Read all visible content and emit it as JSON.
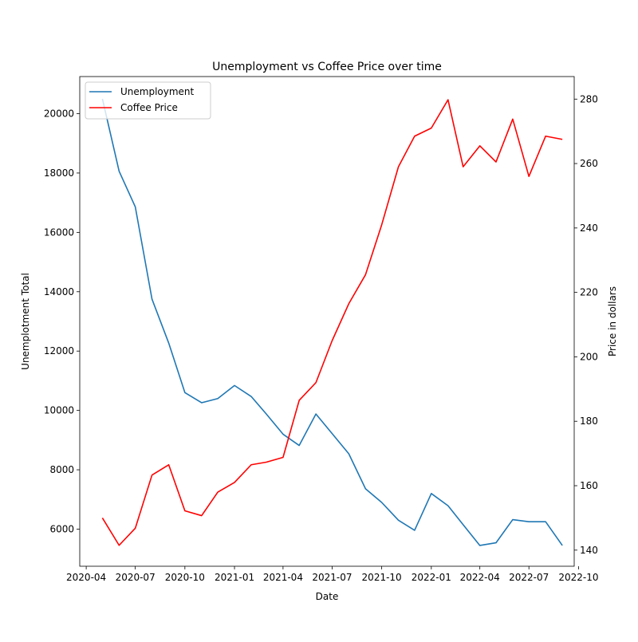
{
  "chart_data": {
    "type": "line",
    "title": "Unemployment vs Coffee Price over time",
    "xlabel": "Date",
    "ylabel_left": "Unemplotment Total",
    "ylabel_right": "Price in dollars",
    "x": [
      "2020-05-01",
      "2020-06-01",
      "2020-07-01",
      "2020-08-01",
      "2020-09-01",
      "2020-10-01",
      "2020-11-01",
      "2020-12-01",
      "2021-01-01",
      "2021-02-01",
      "2021-03-01",
      "2021-04-01",
      "2021-05-01",
      "2021-06-01",
      "2021-07-01",
      "2021-08-01",
      "2021-09-01",
      "2021-10-01",
      "2021-11-01",
      "2021-12-01",
      "2022-01-01",
      "2022-02-01",
      "2022-03-01",
      "2022-04-01",
      "2022-05-01",
      "2022-06-01",
      "2022-07-01",
      "2022-08-01",
      "2022-09-01"
    ],
    "xlim": [
      "2020-03-20",
      "2022-09-23"
    ],
    "x_ticks": [
      "2020-04-01",
      "2020-07-01",
      "2020-10-01",
      "2021-01-01",
      "2021-04-01",
      "2021-07-01",
      "2021-10-01",
      "2022-01-01",
      "2022-04-01",
      "2022-07-01",
      "2022-10-01"
    ],
    "x_tick_labels": [
      "2020-04",
      "2020-07",
      "2020-10",
      "2021-01",
      "2021-04",
      "2021-07",
      "2021-10",
      "2022-01",
      "2022-04",
      "2022-07",
      "2022-10"
    ],
    "ylim_left": [
      4750,
      21250
    ],
    "y_ticks_left": [
      6000,
      8000,
      10000,
      12000,
      14000,
      16000,
      18000,
      20000
    ],
    "ylim_right": [
      135,
      287
    ],
    "y_ticks_right": [
      140,
      160,
      180,
      200,
      220,
      240,
      260,
      280
    ],
    "series": [
      {
        "name": "Unemployment",
        "axis": "left",
        "color": "#1f77b4",
        "values": [
          20500,
          18060,
          16860,
          13750,
          12270,
          10600,
          10260,
          10400,
          10840,
          10470,
          9880,
          9200,
          8820,
          9880,
          9220,
          8540,
          7360,
          6900,
          6300,
          5960,
          7200,
          6790,
          6150,
          5450,
          5540,
          6320,
          6250,
          6250,
          5450
        ]
      },
      {
        "name": "Coffee Price",
        "axis": "right",
        "color": "#ff0000",
        "values": [
          150.0,
          141.5,
          146.8,
          163.3,
          166.5,
          152.2,
          150.7,
          158.0,
          161.0,
          166.5,
          167.3,
          168.8,
          186.5,
          192.0,
          205.0,
          216.5,
          225.5,
          241.0,
          259.0,
          268.5,
          271.0,
          279.8,
          259.0,
          265.5,
          260.5,
          273.8,
          256.0,
          268.5,
          267.5
        ]
      }
    ],
    "legend": "upper-left",
    "grid": false
  }
}
